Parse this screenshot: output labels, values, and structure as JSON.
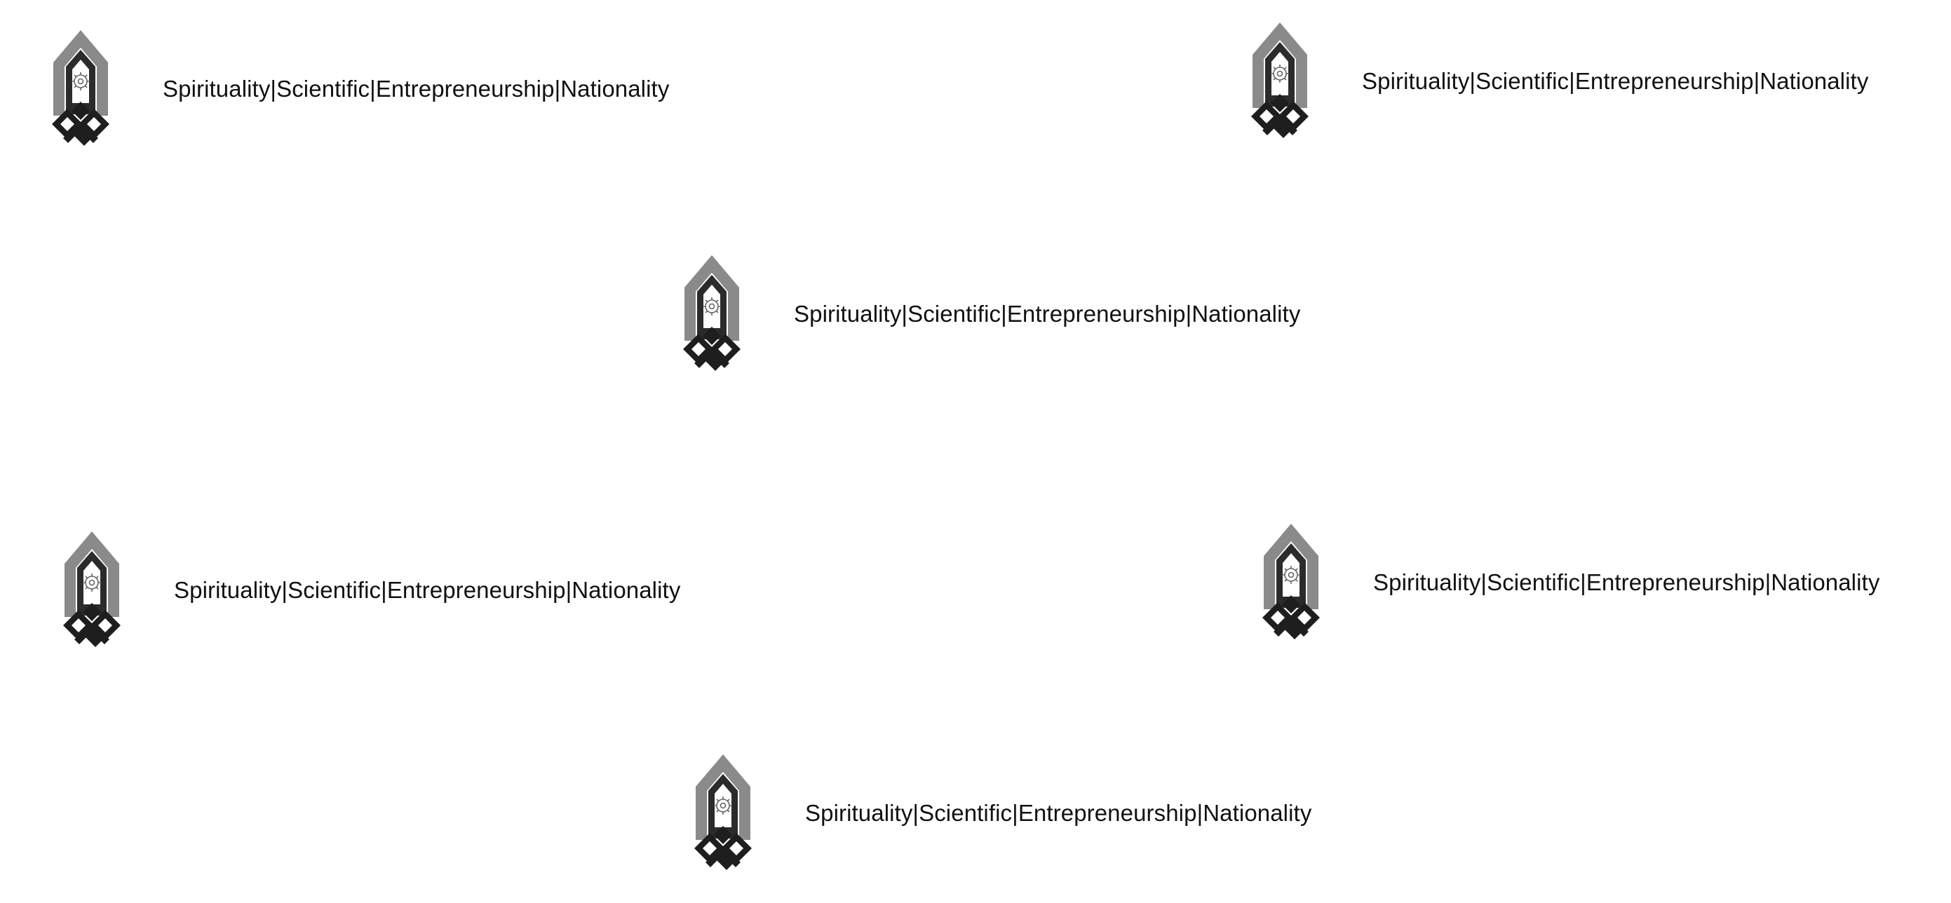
{
  "logo": {
    "icon": "university-emblem-icon",
    "colors": {
      "outer_arch": "#8a8a8a",
      "inner_arch": "#2b2b2b",
      "knot": "#1e1e1e",
      "gear": "#666666"
    }
  },
  "tiles": [
    {
      "motto": "Spirituality|Scientific|Entrepreneurship|Nationality"
    },
    {
      "motto": "Spirituality|Scientific|Entrepreneurship|Nationality"
    },
    {
      "motto": "Spirituality|Scientific|Entrepreneurship|Nationality"
    },
    {
      "motto": "Spirituality|Scientific|Entrepreneurship|Nationality"
    },
    {
      "motto": "Spirituality|Scientific|Entrepreneurship|Nationality"
    },
    {
      "motto": "Spirituality|Scientific|Entrepreneurship|Nationality"
    }
  ]
}
